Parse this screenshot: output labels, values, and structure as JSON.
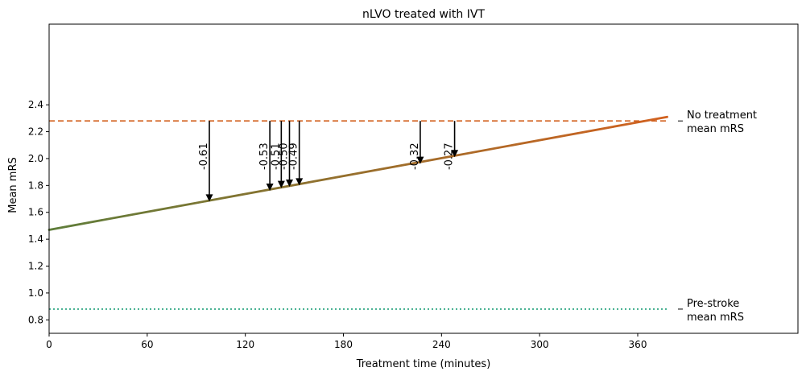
{
  "chart_data": {
    "type": "line",
    "title": "nLVO treated with IVT",
    "xlabel": "Treatment time (minutes)",
    "ylabel": "Mean mRS",
    "xlim": [
      0,
      458
    ],
    "ylim": [
      0.7,
      3.0
    ],
    "x_ticks": [
      0,
      60,
      120,
      180,
      240,
      300,
      360
    ],
    "y_ticks": [
      0.8,
      1.0,
      1.2,
      1.4,
      1.6,
      1.8,
      2.0,
      2.2,
      2.4
    ],
    "y_tick_labels": [
      "0.8",
      "1.0",
      "1.2",
      "1.4",
      "1.6",
      "1.8",
      "2.0",
      "2.2",
      "2.4"
    ],
    "grid": false,
    "series": [
      {
        "style": "solid-gradient",
        "x": [
          0,
          378
        ],
        "y": [
          1.47,
          2.31
        ],
        "color_start": "#5e7d3a",
        "color_end": "#d2611f"
      }
    ],
    "reference_lines": [
      {
        "label_line1": "No treatment",
        "label_line2": "mean mRS",
        "y": 2.28,
        "style": "dashed",
        "color": "#d2611f"
      },
      {
        "label_line1": "Pre-stroke",
        "label_line2": "mean mRS",
        "y": 0.88,
        "style": "dotted",
        "color": "#1b9e77"
      }
    ],
    "annotations": [
      {
        "x": 98,
        "y_from": 2.28,
        "y_to": 1.68,
        "label": "-0.61"
      },
      {
        "x": 135,
        "y_from": 2.28,
        "y_to": 1.76,
        "label": "-0.53"
      },
      {
        "x": 142,
        "y_from": 2.28,
        "y_to": 1.78,
        "label": "-0.51"
      },
      {
        "x": 147,
        "y_from": 2.28,
        "y_to": 1.79,
        "label": "-0.50"
      },
      {
        "x": 153,
        "y_from": 2.28,
        "y_to": 1.8,
        "label": "-0.49"
      },
      {
        "x": 227,
        "y_from": 2.28,
        "y_to": 1.96,
        "label": "-0.32"
      },
      {
        "x": 248,
        "y_from": 2.28,
        "y_to": 2.01,
        "label": "-0.27"
      }
    ]
  }
}
